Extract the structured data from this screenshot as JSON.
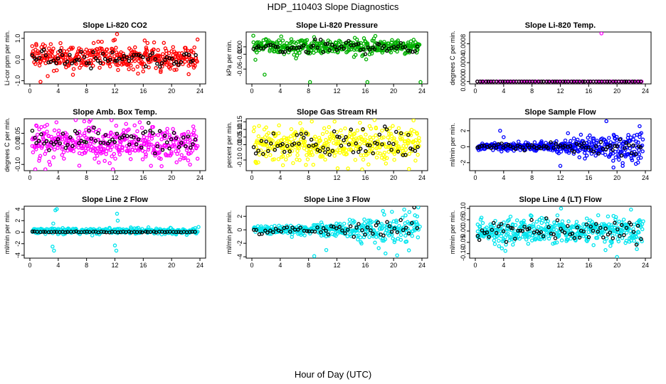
{
  "figure": {
    "title": "HDP_110403  Slope Diagnostics",
    "xlabel": "Hour of Day (UTC)"
  },
  "chart_data": [
    {
      "type": "scatter",
      "title": "Slope Li-820 CO2",
      "ylabel": "Li-cor ppm per min.",
      "xlim": [
        0,
        24
      ],
      "ylim": [
        -1.15,
        1.3
      ],
      "xticks": [
        0,
        4,
        8,
        12,
        16,
        20,
        24
      ],
      "yticks": [
        -1.0,
        0.0,
        1.0
      ],
      "ytick_labels": [
        "-1.0",
        "0.0",
        "1.0"
      ],
      "color": "#ff0000",
      "fill_fraction": 0.78,
      "series": [
        {
          "pattern": "noise",
          "count": 380,
          "center": 0.1,
          "spread": 0.3,
          "outliers": [
            [
              1.5,
              -1.05
            ],
            [
              12.3,
              1.2
            ],
            [
              16.2,
              0.9
            ],
            [
              16.6,
              0.78
            ],
            [
              11.8,
              0.9
            ]
          ]
        },
        {
          "pattern": "noise",
          "count": 70,
          "center": 0.05,
          "spread": 0.18,
          "color": "#000000"
        }
      ]
    },
    {
      "type": "scatter",
      "title": "Slope Li-820 Pressure",
      "ylabel": "kPa per min.",
      "xlim": [
        0,
        24
      ],
      "ylim": [
        -0.1,
        0.04
      ],
      "xticks": [
        0,
        4,
        8,
        12,
        16,
        20,
        24
      ],
      "yticks": [
        -0.06,
        -0.02,
        0.0
      ],
      "ytick_labels": [
        "-0.06",
        "-0.02",
        "0.00"
      ],
      "color": "#00b000",
      "fill_fraction": 0.78,
      "series": [
        {
          "pattern": "noise",
          "count": 380,
          "center": 0.0,
          "spread": 0.01,
          "outliers": [
            [
              1.8,
              -0.075
            ],
            [
              8.2,
              -0.095
            ],
            [
              16.3,
              -0.095
            ],
            [
              23.8,
              -0.095
            ],
            [
              0.5,
              -0.035
            ],
            [
              0.2,
              0.03
            ]
          ]
        },
        {
          "pattern": "noise",
          "count": 70,
          "center": 0.0,
          "spread": 0.008,
          "color": "#000000"
        }
      ]
    },
    {
      "type": "scatter",
      "title": "Slope Li-820 Temp.",
      "ylabel": "degrees C per min.",
      "xlim": [
        0,
        24
      ],
      "ylim": [
        -5e-05,
        0.00105
      ],
      "xticks": [
        0,
        4,
        8,
        12,
        16,
        20,
        24
      ],
      "yticks": [
        0.0,
        0.0004,
        0.0008
      ],
      "ytick_labels": [
        "0.0000",
        "0.0004",
        "0.0008"
      ],
      "color": "#ff00ff",
      "fill_fraction": 1.0,
      "series": [
        {
          "pattern": "flat",
          "count": 80,
          "center": 0.0,
          "spread": 0.0,
          "outliers": [
            [
              17.8,
              0.00102
            ]
          ]
        },
        {
          "pattern": "flat",
          "count": 60,
          "center": 0.0,
          "spread": 0.0,
          "color": "#000000"
        }
      ]
    },
    {
      "type": "scatter",
      "title": "Slope Amb. Box Temp.",
      "ylabel": "degrees C per min.",
      "xlim": [
        0,
        24
      ],
      "ylim": [
        -0.13,
        0.12
      ],
      "xticks": [
        0,
        4,
        8,
        12,
        16,
        20,
        24
      ],
      "yticks": [
        -0.1,
        0.0,
        0.05
      ],
      "ytick_labels": [
        "-0.10",
        "0.00",
        "0.05"
      ],
      "color": "#ff00ff",
      "fill_fraction": 0.78,
      "series": [
        {
          "pattern": "noise",
          "count": 420,
          "center": 0.0,
          "spread": 0.045
        },
        {
          "pattern": "noise",
          "count": 70,
          "center": 0.02,
          "spread": 0.025,
          "color": "#000000"
        }
      ]
    },
    {
      "type": "scatter",
      "title": "Slope Gas Stream RH",
      "ylabel": "percent per min.",
      "xlim": [
        0,
        24
      ],
      "ylim": [
        -0.17,
        0.17
      ],
      "xticks": [
        0,
        4,
        8,
        12,
        16,
        20,
        24
      ],
      "yticks": [
        -0.1,
        0.0,
        0.05,
        0.1,
        0.15
      ],
      "ytick_labels": [
        "-0.10",
        "0.00",
        "0.05",
        "0.10",
        "0.15"
      ],
      "color": "#ffff00",
      "fill_fraction": 0.78,
      "series": [
        {
          "pattern": "noise",
          "count": 420,
          "center": 0.0,
          "spread": 0.06
        },
        {
          "pattern": "noise",
          "count": 70,
          "center": 0.0,
          "spread": 0.05,
          "color": "#000000"
        }
      ]
    },
    {
      "type": "scatter",
      "title": "Slope Sample Flow",
      "ylabel": "ml/min per min.",
      "xlim": [
        0,
        24
      ],
      "ylim": [
        -3.0,
        3.5
      ],
      "xticks": [
        0,
        4,
        8,
        12,
        16,
        20,
        24
      ],
      "yticks": [
        -2,
        0,
        2
      ],
      "ytick_labels": [
        "-2",
        "0",
        "2"
      ],
      "color": "#0000ff",
      "fill_fraction": 0.78,
      "series": [
        {
          "pattern": "growing",
          "count": 420,
          "center": 0.0,
          "spread": 0.9,
          "outliers": [
            [
              3.5,
              2.0
            ],
            [
              4.0,
              1.2
            ],
            [
              18.5,
              3.2
            ],
            [
              19.5,
              -2.6
            ],
            [
              20.8,
              -2.4
            ],
            [
              12.0,
              -2.4
            ]
          ]
        },
        {
          "pattern": "growing",
          "count": 70,
          "center": 0.0,
          "spread": 0.6,
          "color": "#000000"
        }
      ]
    },
    {
      "type": "scatter",
      "title": "Slope Line 2 Flow",
      "ylabel": "ml/min per min.",
      "xlim": [
        0,
        24
      ],
      "ylim": [
        -4.5,
        4.5
      ],
      "xticks": [
        0,
        4,
        8,
        12,
        16,
        20,
        24
      ],
      "yticks": [
        -4,
        -2,
        0,
        2,
        4
      ],
      "ytick_labels": [
        "-4",
        "-2",
        "0",
        "2",
        "4"
      ],
      "color": "#00e5ee",
      "fill_fraction": 0.8,
      "series": [
        {
          "pattern": "noise",
          "count": 360,
          "center": 0.2,
          "spread": 0.25,
          "outliers": [
            [
              3.2,
              -2.5
            ],
            [
              3.4,
              -3.2
            ],
            [
              3.6,
              3.8
            ],
            [
              3.8,
              4.0
            ],
            [
              3.3,
              1.5
            ],
            [
              12.0,
              -2.3
            ],
            [
              12.2,
              -3.2
            ],
            [
              12.4,
              2.0
            ],
            [
              12.3,
              3.2
            ],
            [
              23.8,
              0.9
            ]
          ]
        },
        {
          "pattern": "noise",
          "count": 60,
          "center": 0.05,
          "spread": 0.05,
          "color": "#000000"
        }
      ]
    },
    {
      "type": "scatter",
      "title": "Slope Line 3 Flow",
      "ylabel": "ml/min per min.",
      "xlim": [
        0,
        24
      ],
      "ylim": [
        -4.2,
        3.5
      ],
      "xticks": [
        0,
        4,
        8,
        12,
        16,
        20,
        24
      ],
      "yticks": [
        -4,
        -2,
        0,
        2
      ],
      "ytick_labels": [
        "-4",
        "-2",
        "0",
        "2"
      ],
      "color": "#00e5ee",
      "fill_fraction": 0.8,
      "series": [
        {
          "pattern": "growing",
          "count": 360,
          "center": 0.0,
          "spread": 1.2,
          "outliers": [
            [
              8.8,
              -3.9
            ],
            [
              10.5,
              -3.0
            ],
            [
              21.5,
              3.0
            ],
            [
              18.5,
              2.8
            ]
          ]
        },
        {
          "pattern": "growing",
          "count": 60,
          "center": 0.0,
          "spread": 0.9,
          "color": "#000000"
        }
      ]
    },
    {
      "type": "scatter",
      "title": "Slope Line 4 (LT) Flow",
      "ylabel": "ml/min per min.",
      "xlim": [
        0,
        24
      ],
      "ylim": [
        -0.12,
        0.11
      ],
      "xticks": [
        0,
        4,
        8,
        12,
        16,
        20,
        24
      ],
      "yticks": [
        -0.1,
        -0.05,
        0.0,
        0.05,
        0.1
      ],
      "ytick_labels": [
        "-0.10",
        "-0.05",
        "0.00",
        "0.05",
        "0.10"
      ],
      "color": "#00e5ee",
      "fill_fraction": 0.78,
      "series": [
        {
          "pattern": "noise",
          "count": 420,
          "center": 0.0,
          "spread": 0.03,
          "outliers": [
            [
              12.1,
              0.1
            ],
            [
              20.0,
              -0.115
            ],
            [
              22.8,
              -0.08
            ]
          ]
        },
        {
          "pattern": "noise",
          "count": 70,
          "center": 0.0,
          "spread": 0.025,
          "color": "#000000"
        }
      ]
    }
  ]
}
